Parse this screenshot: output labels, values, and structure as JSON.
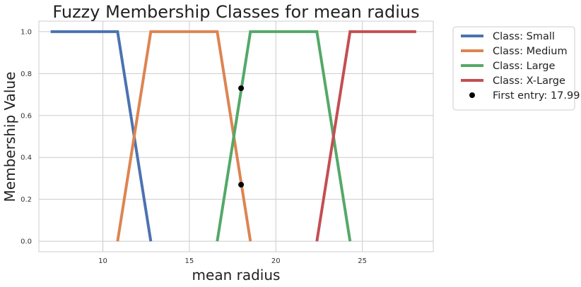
{
  "chart_data": {
    "type": "line",
    "title": "Fuzzy Membership Classes for mean radius",
    "xlabel": "mean radius",
    "ylabel": "Membership Value",
    "xlim": [
      6.3,
      29.1
    ],
    "ylim": [
      -0.05,
      1.05
    ],
    "xticks": [
      10,
      15,
      20,
      25
    ],
    "yticks": [
      0.0,
      0.2,
      0.4,
      0.6,
      0.8,
      1.0
    ],
    "xtick_labels": [
      "10",
      "15",
      "20",
      "25"
    ],
    "ytick_labels": [
      "0.0",
      "0.2",
      "0.4",
      "0.6",
      "0.8",
      "1.0"
    ],
    "grid": true,
    "legend_position": "outside-right-top",
    "series": [
      {
        "name": "Class: Small",
        "color": "#4c72b0",
        "x": [
          6.98,
          10.85,
          12.77
        ],
        "y": [
          1.0,
          1.0,
          0.0
        ]
      },
      {
        "name": "Class: Medium",
        "color": "#dd8452",
        "x": [
          10.85,
          12.77,
          16.61,
          18.53
        ],
        "y": [
          0.0,
          1.0,
          1.0,
          0.0
        ]
      },
      {
        "name": "Class: Large",
        "color": "#55a868",
        "x": [
          16.61,
          18.53,
          22.37,
          24.29
        ],
        "y": [
          0.0,
          1.0,
          1.0,
          0.0
        ]
      },
      {
        "name": "Class: X-Large",
        "color": "#c44e52",
        "x": [
          22.37,
          24.29,
          28.11
        ],
        "y": [
          0.0,
          1.0,
          1.0
        ]
      }
    ],
    "points": {
      "name": "First entry: 17.99",
      "color": "#000000",
      "x": [
        17.99,
        17.99
      ],
      "y": [
        0.73,
        0.27
      ]
    }
  }
}
